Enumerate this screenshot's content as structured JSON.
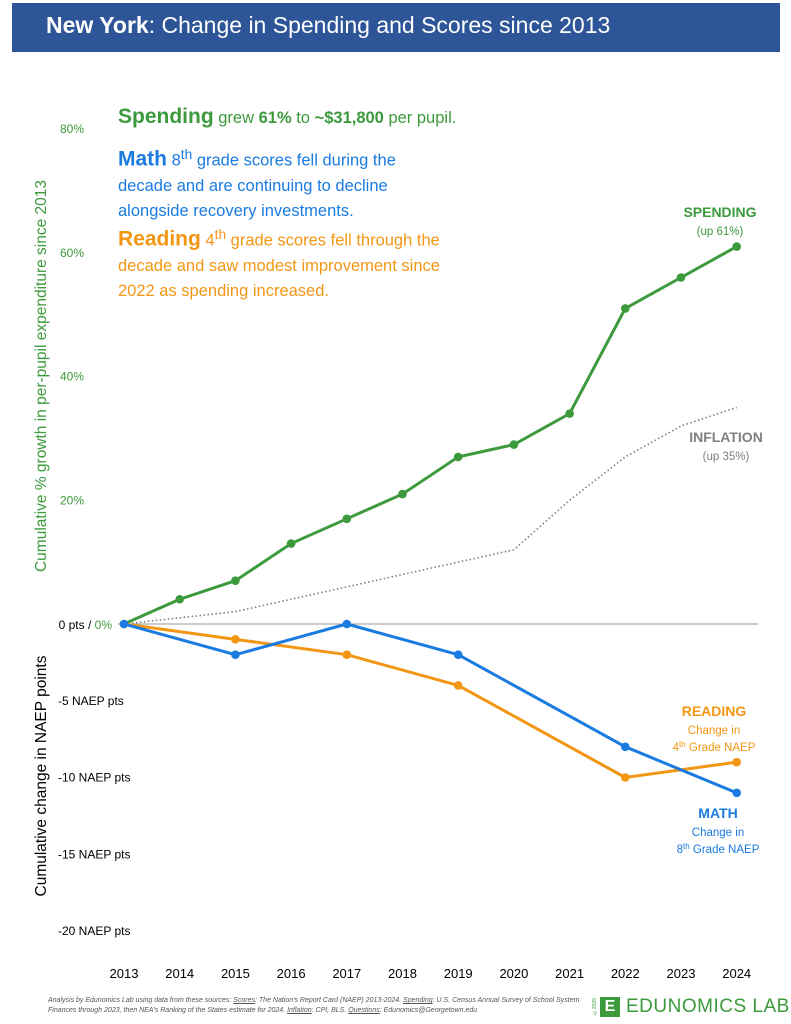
{
  "header": {
    "title_bold": "New York",
    "title_rest": ": Change in Spending and Scores since 2013"
  },
  "notes": {
    "spending": {
      "head": "Spending",
      "pre": " grew ",
      "pct": "61%",
      "mid": " to ",
      "amount": "~$31,800",
      "post": " per pupil."
    },
    "math": {
      "head": "Math",
      "grade": "8",
      "sup": "th",
      "text": " grade scores fell during the decade and are continuing to decline alongside recovery investments."
    },
    "reading": {
      "head": "Reading",
      "grade": "4",
      "sup": "th",
      "text": " grade scores fell through the decade and saw modest improvement since 2022 as spending increased."
    }
  },
  "footer": {
    "p1": "Analysis by Edunomics Lab using data from these sources: ",
    "scores_k": "Scores",
    "scores_v": ": The Nation's Report Card (NAEP) 2013-2024. ",
    "spending_k": "Spending",
    "spending_v": ": U.S. Census Annual Survey of School System Finances through 2023, then NEA's Ranking of the States estimate for 2024. ",
    "inflation_k": "Inflation",
    "inflation_v": ": CPI, BLS. ",
    "questions_k": "Questions",
    "questions_v": ": Edunomics@Georgetown.edu",
    "logo_mark": "E",
    "logo_text": "EDUNOMICS LAB",
    "logo_year": "©2025"
  },
  "colors": {
    "spending": "#3c9a3c",
    "inflation": "#7f7f7f",
    "math": "#1a7be0",
    "reading": "#f29613",
    "title_bar": "#2e5597"
  },
  "chart_data": {
    "type": "line",
    "x": [
      "2013",
      "2014",
      "2015",
      "2016",
      "2017",
      "2018",
      "2019",
      "2020",
      "2021",
      "2022",
      "2023",
      "2024"
    ],
    "ylabel_top": "Cumulative % growth in per-pupil expenditure since 2013",
    "ylabel_bottom": "Cumulative change in NAEP points",
    "pct_ticks": [
      "80%",
      "60%",
      "40%",
      "20%"
    ],
    "pct_tick_values": [
      80,
      60,
      40,
      20
    ],
    "zero_label_pts": "0 pts / ",
    "zero_label_pct": "0%",
    "pts_ticks": [
      "-5 NAEP pts",
      "-10 NAEP pts",
      "-15 NAEP pts",
      "-20 NAEP pts"
    ],
    "pts_tick_values": [
      -5,
      -10,
      -15,
      -20
    ],
    "ylim_pct": [
      0,
      80
    ],
    "ylim_pts": [
      -20,
      0
    ],
    "series": [
      {
        "key": "spending",
        "name": "SPENDING",
        "sub": "(up 61%)",
        "axis": "pct",
        "values": [
          0,
          4,
          7,
          13,
          17,
          21,
          27,
          29,
          34,
          51,
          56,
          61
        ]
      },
      {
        "key": "inflation",
        "name": "INFLATION",
        "sub": "(up 35%)",
        "axis": "pct",
        "values": [
          0,
          1,
          2,
          4,
          6,
          8,
          10,
          12,
          20,
          27,
          32,
          35
        ]
      },
      {
        "key": "reading",
        "name": "READING",
        "sub1": "Change in",
        "sub2_num": "4",
        "sub2_sup": "th",
        "sub2_rest": " Grade NAEP",
        "axis": "pts",
        "values": [
          0,
          null,
          -1,
          null,
          -2,
          null,
          -4,
          null,
          null,
          -10,
          null,
          -9
        ]
      },
      {
        "key": "math",
        "name": "MATH",
        "sub1": "Change in",
        "sub2_num": "8",
        "sub2_sup": "th",
        "sub2_rest": " Grade NAEP",
        "axis": "pts",
        "values": [
          0,
          null,
          -2,
          null,
          0,
          null,
          -2,
          null,
          null,
          -8,
          null,
          -11
        ]
      }
    ]
  }
}
